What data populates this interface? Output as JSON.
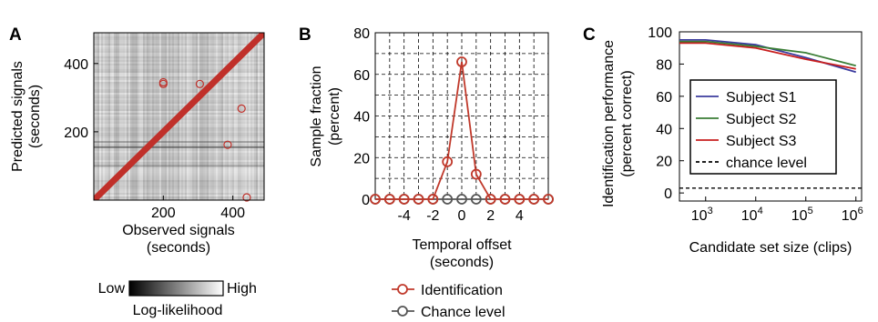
{
  "colors": {
    "identification": "#c0392b",
    "chance": "#555555",
    "s1": "#3b3b9e",
    "s2": "#3a7d35",
    "s3": "#c81e1e",
    "diag": "#c0302a"
  },
  "chart_data": [
    {
      "panel": "A",
      "type": "heatmap",
      "xlabel": [
        "Observed signals",
        "(seconds)"
      ],
      "ylabel": [
        "Predicted signals",
        "(seconds)"
      ],
      "xticks": [
        200,
        400
      ],
      "yticks": [
        200,
        400
      ],
      "xlim": [
        0,
        490
      ],
      "ylim": [
        0,
        490
      ],
      "diagonal": [
        [
          0,
          0
        ],
        [
          490,
          490
        ]
      ],
      "off_diagonal_points": [
        [
          200,
          345
        ],
        [
          200,
          340
        ],
        [
          305,
          340
        ],
        [
          425,
          268
        ],
        [
          385,
          162
        ],
        [
          440,
          8
        ]
      ],
      "colorbar": {
        "low_label": "Low",
        "high_label": "High",
        "label": "Log-likelihood"
      }
    },
    {
      "panel": "B",
      "type": "line",
      "xlabel": [
        "Temporal offset",
        "(seconds)"
      ],
      "ylabel": [
        "Sample fraction",
        "(percent)"
      ],
      "xticks": [
        -4,
        -2,
        0,
        2,
        4
      ],
      "yticks": [
        0,
        20,
        40,
        60,
        80
      ],
      "xlim": [
        -6,
        6
      ],
      "ylim": [
        0,
        80
      ],
      "grid": true,
      "x": [
        -6,
        -5,
        -4,
        -3,
        -2,
        -1,
        0,
        1,
        2,
        3,
        4,
        5,
        6
      ],
      "series": [
        {
          "name": "Identification",
          "values": [
            0,
            0,
            0,
            0,
            0,
            18,
            66,
            12,
            0,
            0,
            0,
            0,
            0
          ]
        },
        {
          "name": "Chance level",
          "values": [
            0,
            0,
            0,
            0,
            0,
            0,
            0,
            0,
            0,
            0,
            0,
            0,
            0
          ]
        }
      ]
    },
    {
      "panel": "C",
      "type": "line",
      "xlabel": "Candidate set size (clips)",
      "ylabel": [
        "Identification performance",
        "(percent correct)"
      ],
      "xscale": "log",
      "xticks": [
        {
          "base": "10",
          "exp": "3"
        },
        {
          "base": "10",
          "exp": "4"
        },
        {
          "base": "10",
          "exp": "5"
        },
        {
          "base": "10",
          "exp": "6"
        }
      ],
      "yticks": [
        0,
        20,
        40,
        60,
        80,
        100
      ],
      "xlim": [
        300,
        1300000
      ],
      "ylim": [
        -5,
        100
      ],
      "legend_position": "center-left",
      "x": [
        300,
        1000,
        10000,
        100000,
        1000000
      ],
      "series": [
        {
          "name": "Subject S1",
          "values": [
            95,
            95,
            92,
            84,
            75
          ]
        },
        {
          "name": "Subject S2",
          "values": [
            94,
            94,
            91,
            87,
            79
          ]
        },
        {
          "name": "Subject S3",
          "values": [
            93,
            93,
            90,
            83,
            77
          ]
        }
      ],
      "reference_lines": [
        {
          "name": "chance level",
          "value": 3
        }
      ]
    }
  ]
}
